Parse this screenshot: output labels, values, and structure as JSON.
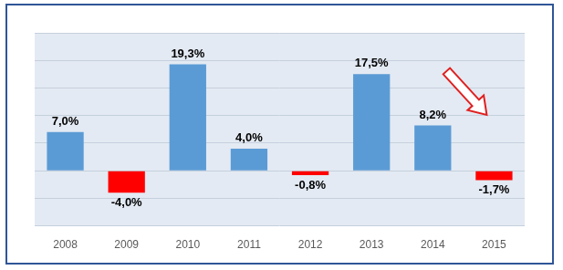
{
  "chart_data": {
    "type": "bar",
    "categories": [
      "2008",
      "2009",
      "2010",
      "2011",
      "2012",
      "2013",
      "2014",
      "2015"
    ],
    "values": [
      7.0,
      -4.0,
      19.3,
      4.0,
      -0.8,
      17.5,
      8.2,
      -1.7
    ],
    "value_labels": [
      "7,0%",
      "-4,0%",
      "19,3%",
      "4,0%",
      "-0,8%",
      "17,5%",
      "8,2%",
      "-1,7%"
    ],
    "colors": [
      "#5b9bd5",
      "#ff0000",
      "#5b9bd5",
      "#5b9bd5",
      "#ff0000",
      "#5b9bd5",
      "#5b9bd5",
      "#ff0000"
    ],
    "ylim": [
      -10,
      25
    ],
    "yticks": [
      -10,
      -5,
      0,
      5,
      10,
      15,
      20,
      25
    ],
    "grid": true,
    "data_labels": true,
    "tick_labels": "x"
  }
}
